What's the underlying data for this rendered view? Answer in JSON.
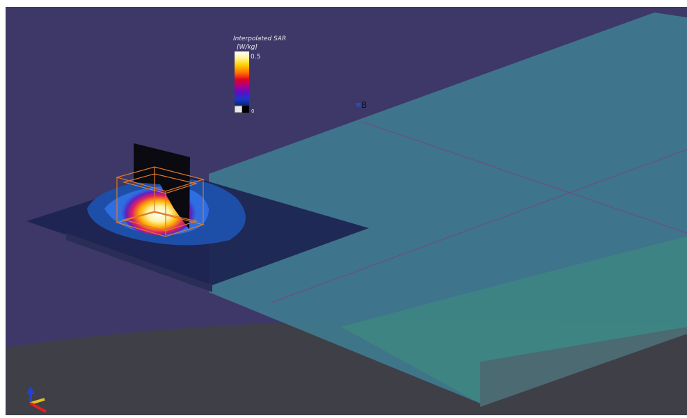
{
  "colorbar": {
    "title": "Interpolated SAR",
    "unit": "[W/kg]",
    "max_label": "0.5",
    "min_label": "0"
  },
  "marker": {
    "label": "B"
  }
}
